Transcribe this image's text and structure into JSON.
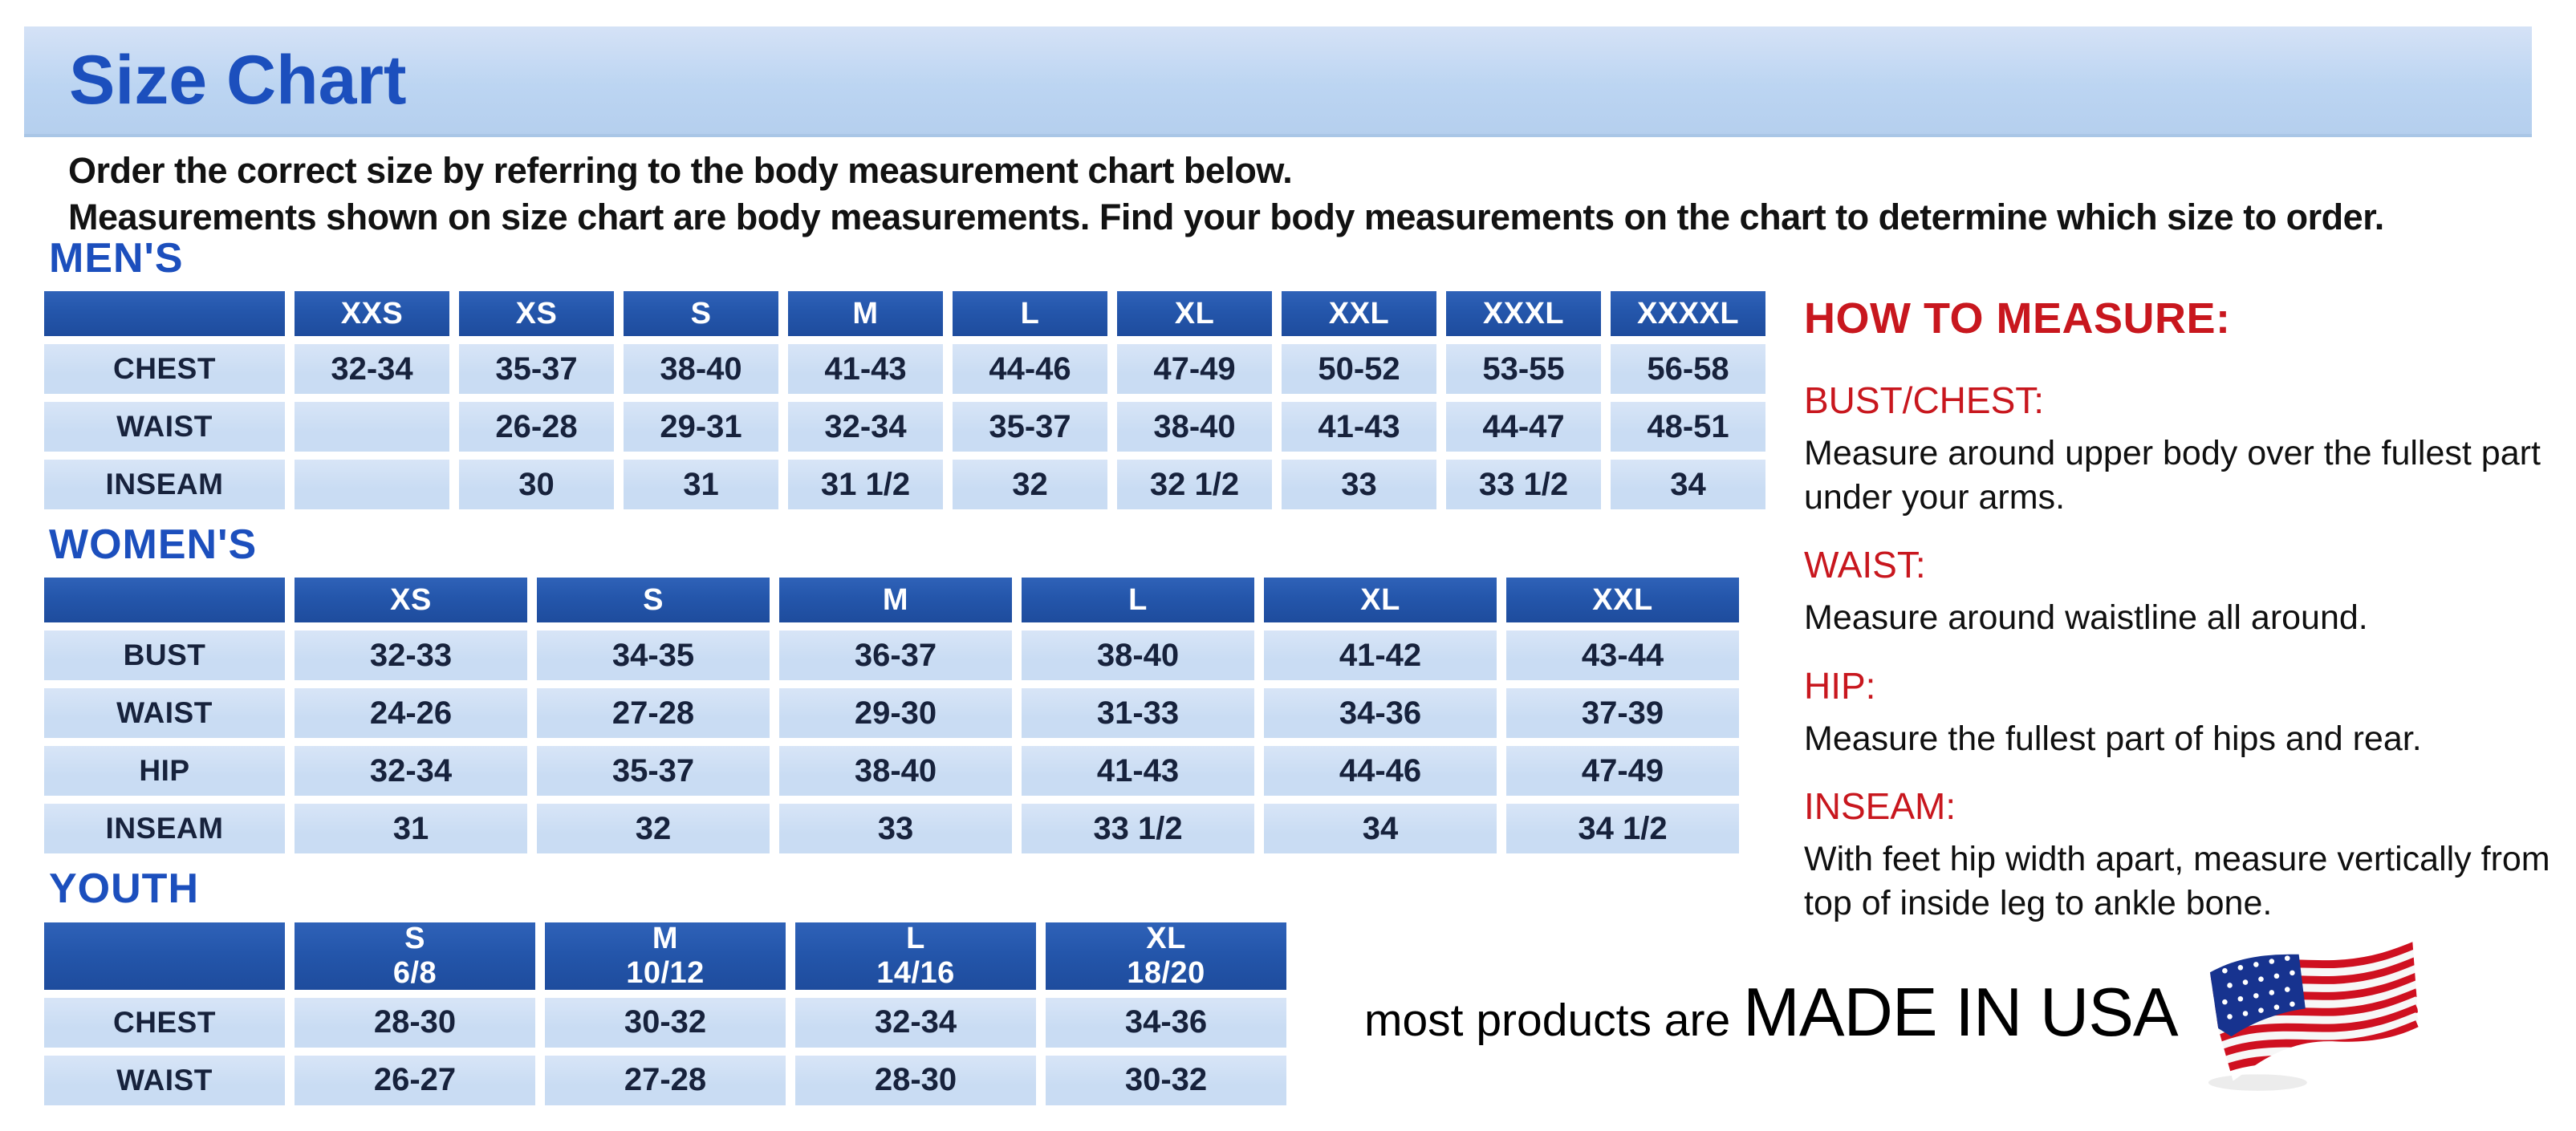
{
  "colors": {
    "accent_blue": "#1c4fbd",
    "header_blue": "#2456ab",
    "cell_blue": "#c9dcf3",
    "heading_red": "#c8171e",
    "flag_red": "#cf1020",
    "flag_blue": "#17338f"
  },
  "banner": {
    "title": "Size Chart"
  },
  "intro": {
    "line1": "Order the correct size by referring to the body measurement chart below.",
    "line2": "Measurements shown on size chart are body measurements.  Find your body measurements on the chart to determine which size to order."
  },
  "tables": [
    {
      "id": "mens",
      "heading": "MEN'S",
      "columns": [
        {
          "size": "XXS",
          "range": ""
        },
        {
          "size": "XS",
          "range": ""
        },
        {
          "size": "S",
          "range": ""
        },
        {
          "size": "M",
          "range": ""
        },
        {
          "size": "L",
          "range": ""
        },
        {
          "size": "XL",
          "range": ""
        },
        {
          "size": "XXL",
          "range": ""
        },
        {
          "size": "XXXL",
          "range": ""
        },
        {
          "size": "XXXXL",
          "range": ""
        }
      ],
      "rows": [
        {
          "label": "CHEST",
          "values": [
            "32-34",
            "35-37",
            "38-40",
            "41-43",
            "44-46",
            "47-49",
            "50-52",
            "53-55",
            "56-58"
          ]
        },
        {
          "label": "WAIST",
          "values": [
            "",
            "26-28",
            "29-31",
            "32-34",
            "35-37",
            "38-40",
            "41-43",
            "44-47",
            "48-51"
          ]
        },
        {
          "label": "INSEAM",
          "values": [
            "",
            "30",
            "31",
            "31 1/2",
            "32",
            "32 1/2",
            "33",
            "33 1/2",
            "34"
          ]
        }
      ]
    },
    {
      "id": "womens",
      "heading": "WOMEN'S",
      "columns": [
        {
          "size": "XS",
          "range": ""
        },
        {
          "size": "S",
          "range": ""
        },
        {
          "size": "M",
          "range": ""
        },
        {
          "size": "L",
          "range": ""
        },
        {
          "size": "XL",
          "range": ""
        },
        {
          "size": "XXL",
          "range": ""
        }
      ],
      "rows": [
        {
          "label": "BUST",
          "values": [
            "32-33",
            "34-35",
            "36-37",
            "38-40",
            "41-42",
            "43-44"
          ]
        },
        {
          "label": "WAIST",
          "values": [
            "24-26",
            "27-28",
            "29-30",
            "31-33",
            "34-36",
            "37-39"
          ]
        },
        {
          "label": "HIP",
          "values": [
            "32-34",
            "35-37",
            "38-40",
            "41-43",
            "44-46",
            "47-49"
          ]
        },
        {
          "label": "INSEAM",
          "values": [
            "31",
            "32",
            "33",
            "33 1/2",
            "34",
            "34 1/2"
          ]
        }
      ]
    },
    {
      "id": "youth",
      "heading": "YOUTH",
      "columns": [
        {
          "size": "S",
          "range": "6/8"
        },
        {
          "size": "M",
          "range": "10/12"
        },
        {
          "size": "L",
          "range": "14/16"
        },
        {
          "size": "XL",
          "range": "18/20"
        }
      ],
      "rows": [
        {
          "label": "CHEST",
          "values": [
            "28-30",
            "30-32",
            "32-34",
            "34-36"
          ]
        },
        {
          "label": "WAIST",
          "values": [
            "26-27",
            "27-28",
            "28-30",
            "30-32"
          ]
        }
      ]
    }
  ],
  "how_to_measure": {
    "heading": "HOW TO MEASURE:",
    "items": [
      {
        "term": "BUST/CHEST:",
        "description": "Measure around upper body over the fullest part under your arms."
      },
      {
        "term": "WAIST:",
        "description": "Measure around waistline all around."
      },
      {
        "term": "HIP:",
        "description": "Measure the fullest part of hips and rear."
      },
      {
        "term": "INSEAM:",
        "description": "With feet hip width apart, measure vertically from top of inside leg to ankle bone."
      }
    ]
  },
  "footer": {
    "made_in_prefix": "most products are ",
    "made_in": "MADE IN USA",
    "flag_icon": "us-flag-icon"
  }
}
